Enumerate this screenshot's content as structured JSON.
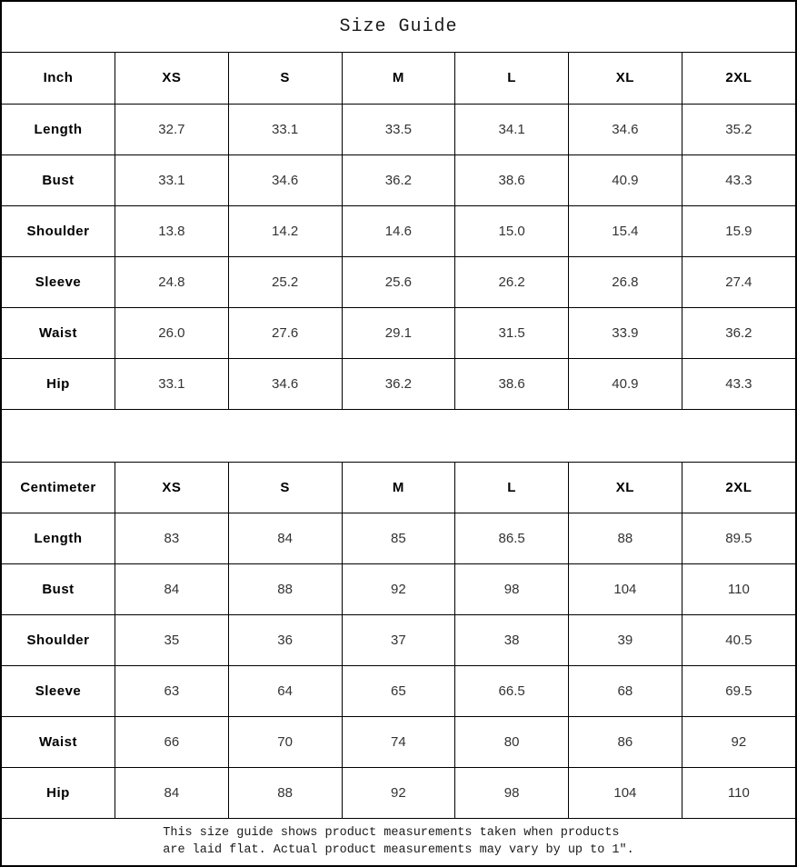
{
  "title": "Size Guide",
  "sizes": [
    "XS",
    "S",
    "M",
    "L",
    "XL",
    "2XL"
  ],
  "tables": [
    {
      "unit_label": "Inch",
      "rows": [
        {
          "label": "Length",
          "values": [
            "32.7",
            "33.1",
            "33.5",
            "34.1",
            "34.6",
            "35.2"
          ]
        },
        {
          "label": "Bust",
          "values": [
            "33.1",
            "34.6",
            "36.2",
            "38.6",
            "40.9",
            "43.3"
          ]
        },
        {
          "label": "Shoulder",
          "values": [
            "13.8",
            "14.2",
            "14.6",
            "15.0",
            "15.4",
            "15.9"
          ]
        },
        {
          "label": "Sleeve",
          "values": [
            "24.8",
            "25.2",
            "25.6",
            "26.2",
            "26.8",
            "27.4"
          ]
        },
        {
          "label": "Waist",
          "values": [
            "26.0",
            "27.6",
            "29.1",
            "31.5",
            "33.9",
            "36.2"
          ]
        },
        {
          "label": "Hip",
          "values": [
            "33.1",
            "34.6",
            "36.2",
            "38.6",
            "40.9",
            "43.3"
          ]
        }
      ]
    },
    {
      "unit_label": "Centimeter",
      "rows": [
        {
          "label": "Length",
          "values": [
            "83",
            "84",
            "85",
            "86.5",
            "88",
            "89.5"
          ]
        },
        {
          "label": "Bust",
          "values": [
            "84",
            "88",
            "92",
            "98",
            "104",
            "110"
          ]
        },
        {
          "label": "Shoulder",
          "values": [
            "35",
            "36",
            "37",
            "38",
            "39",
            "40.5"
          ]
        },
        {
          "label": "Sleeve",
          "values": [
            "63",
            "64",
            "65",
            "66.5",
            "68",
            "69.5"
          ]
        },
        {
          "label": "Waist",
          "values": [
            "66",
            "70",
            "74",
            "80",
            "86",
            "92"
          ]
        },
        {
          "label": "Hip",
          "values": [
            "84",
            "88",
            "92",
            "98",
            "104",
            "110"
          ]
        }
      ]
    }
  ],
  "footer": {
    "line1": "This size guide shows product measurements taken when products",
    "line2": "are laid flat. Actual product measurements may vary by up to 1″."
  },
  "colors": {
    "border": "#000000",
    "label_text": "#000000",
    "value_text": "#333333",
    "background": "#ffffff"
  }
}
